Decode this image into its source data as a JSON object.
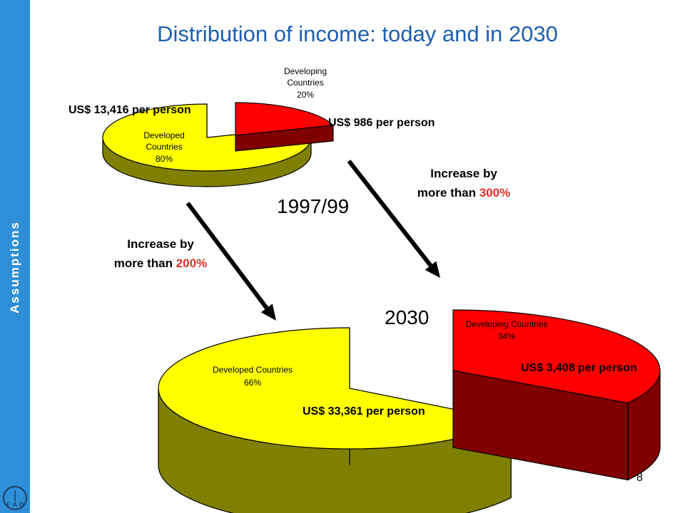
{
  "slide": {
    "title": "Distribution of income: today and in 2030",
    "sidebar_label": "Assumptions",
    "page_number": "8",
    "logo_letters": [
      "F",
      "A",
      "O"
    ]
  },
  "colors": {
    "developing": "#ff0000",
    "developing_side": "#800000",
    "developed": "#ffff00",
    "developed_side": "#808000",
    "sidebar": "#2e8fd6",
    "title": "#1f5fb0",
    "highlight": "#e0302a"
  },
  "chart_data": [
    {
      "type": "pie",
      "title": "1997/99",
      "slices": [
        {
          "label_line1": "Developing",
          "label_line2": "Countries",
          "percent_text": "20%",
          "value": 20,
          "income": "US$  986 per person"
        },
        {
          "label_line1": "Developed",
          "label_line2": "Countries",
          "percent_text": "80%",
          "value": 80,
          "income": "US$ 13,416 per person"
        }
      ]
    },
    {
      "type": "pie",
      "title": "2030",
      "slices": [
        {
          "label_line1": "Developing Countries",
          "percent_text": "34%",
          "value": 34,
          "income": "US$ 3,408 per person"
        },
        {
          "label_line1": "Developed Countries",
          "percent_text": "66%",
          "value": 66,
          "income": "US$ 33,361 per person"
        }
      ]
    }
  ],
  "annotations": {
    "developed_change": {
      "line1": "Increase by",
      "line2_prefix": "more than ",
      "line2_value": "200%"
    },
    "developing_change": {
      "line1": "Increase by",
      "line2_prefix": "more than ",
      "line2_value": "300%"
    }
  }
}
